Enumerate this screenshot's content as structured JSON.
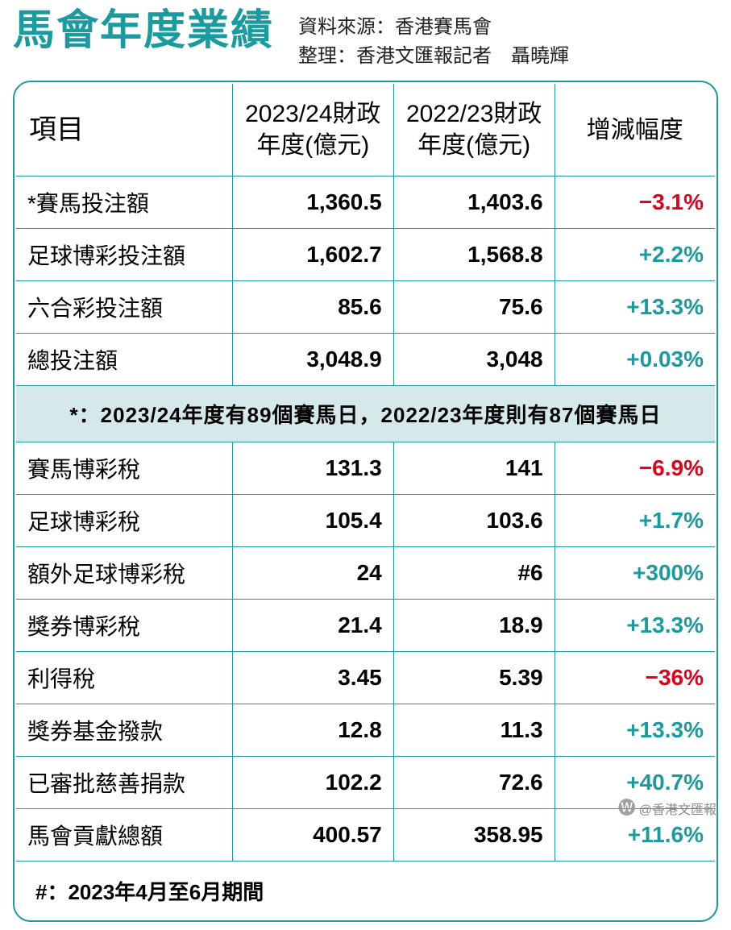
{
  "colors": {
    "accent": "#1a9ba0",
    "negative": "#e2001a",
    "note_bg": "#d6e9ea",
    "text": "#000000",
    "background": "#ffffff"
  },
  "typography": {
    "title_fontsize_pt": 39,
    "header_fontsize_pt": 22,
    "body_fontsize_pt": 21,
    "source_fontsize_pt": 18,
    "font_family": "Microsoft JhengHei"
  },
  "header": {
    "title": "馬會年度業績",
    "source_line1": "資料來源：香港賽馬會",
    "source_line2": "整理：香港文匯報記者　聶曉輝"
  },
  "table": {
    "type": "table",
    "columns": [
      "項目",
      "2023/24財政年度(億元)",
      "2022/23財政年度(億元)",
      "增減幅度"
    ],
    "section1_rows": [
      {
        "item": "*賽馬投注額",
        "fy24": "1,360.5",
        "fy23": "1,403.6",
        "change": "−3.1%",
        "dir": "neg"
      },
      {
        "item": "足球博彩投注額",
        "fy24": "1,602.7",
        "fy23": "1,568.8",
        "change": "+2.2%",
        "dir": "pos"
      },
      {
        "item": "六合彩投注額",
        "fy24": "85.6",
        "fy23": "75.6",
        "change": "+13.3%",
        "dir": "pos"
      },
      {
        "item": "總投注額",
        "fy24": "3,048.9",
        "fy23": "3,048",
        "change": "+0.03%",
        "dir": "pos"
      }
    ],
    "note1": "*：2023/24年度有89個賽馬日，2022/23年度則有87個賽馬日",
    "section2_rows": [
      {
        "item": "賽馬博彩稅",
        "fy24": "131.3",
        "fy23": "141",
        "change": "−6.9%",
        "dir": "neg"
      },
      {
        "item": "足球博彩稅",
        "fy24": "105.4",
        "fy23": "103.6",
        "change": "+1.7%",
        "dir": "pos"
      },
      {
        "item": "額外足球博彩稅",
        "fy24": "24",
        "fy23": "#6",
        "change": "+300%",
        "dir": "pos"
      },
      {
        "item": "獎券博彩稅",
        "fy24": "21.4",
        "fy23": "18.9",
        "change": "+13.3%",
        "dir": "pos"
      },
      {
        "item": "利得稅",
        "fy24": "3.45",
        "fy23": "5.39",
        "change": "−36%",
        "dir": "neg"
      },
      {
        "item": "獎券基金撥款",
        "fy24": "12.8",
        "fy23": "11.3",
        "change": "+13.3%",
        "dir": "pos"
      },
      {
        "item": "已審批慈善捐款",
        "fy24": "102.2",
        "fy23": "72.6",
        "change": "+40.7%",
        "dir": "pos"
      },
      {
        "item": "馬會貢獻總額",
        "fy24": "400.57",
        "fy23": "358.95",
        "change": "+11.6%",
        "dir": "pos"
      }
    ],
    "note2": "#：2023年4月至6月期間"
  },
  "watermark": "@香港文匯報"
}
